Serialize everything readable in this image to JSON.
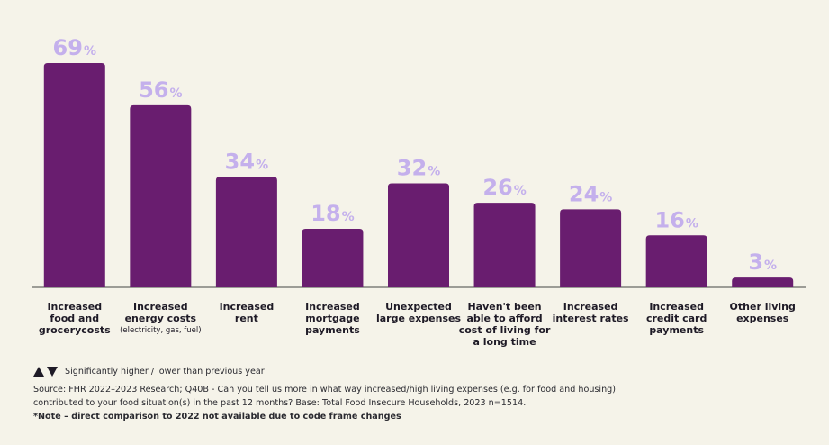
{
  "chart_data": {
    "type": "bar",
    "categories": [
      {
        "lines": [
          "Increased",
          "food and",
          "grocerycosts"
        ],
        "sub": ""
      },
      {
        "lines": [
          "Increased",
          "energy costs"
        ],
        "sub": "(electricity, gas, fuel)"
      },
      {
        "lines": [
          "Increased",
          "rent"
        ],
        "sub": ""
      },
      {
        "lines": [
          "Increased",
          "mortgage",
          "payments"
        ],
        "sub": ""
      },
      {
        "lines": [
          "Unexpected",
          "large expenses"
        ],
        "sub": ""
      },
      {
        "lines": [
          "Haven't been",
          "able to afford",
          "cost of living for",
          "a long time"
        ],
        "sub": ""
      },
      {
        "lines": [
          "Increased",
          "interest rates"
        ],
        "sub": ""
      },
      {
        "lines": [
          "Increased",
          "credit card",
          "payments"
        ],
        "sub": ""
      },
      {
        "lines": [
          "Other living",
          "expenses"
        ],
        "sub": ""
      }
    ],
    "values": [
      69,
      56,
      34,
      18,
      32,
      26,
      24,
      16,
      3
    ],
    "value_suffix": "%",
    "ylim": [
      0,
      69
    ],
    "grid": false,
    "colors": {
      "bar": "#691d6f",
      "value_label": "#c4b0ec",
      "axis": "#444444"
    }
  },
  "legend": {
    "up_icon": "triangle-up",
    "down_icon": "triangle-down",
    "text": "Significantly higher /  lower than previous year"
  },
  "source": {
    "line1": "Source: FHR 2022–2023 Research; Q40B - Can you tell us more in what way increased/high living expenses (e.g. for food and housing)",
    "line2": "contributed to your food situation(s) in the past 12 months? Base: Total Food Insecure Households, 2023 n=1514.",
    "note": "*Note – direct comparison to 2022 not available due to code frame changes"
  }
}
